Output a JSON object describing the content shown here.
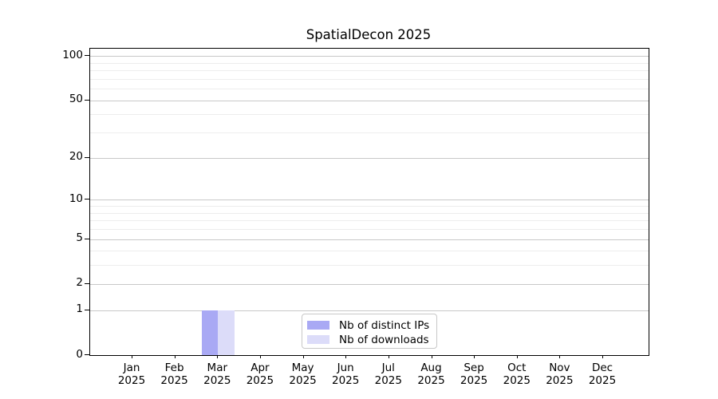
{
  "chart_data": {
    "type": "bar",
    "title": "SpatialDecon 2025",
    "categories": [
      "Jan 2025",
      "Feb 2025",
      "Mar 2025",
      "Apr 2025",
      "May 2025",
      "Jun 2025",
      "Jul 2025",
      "Aug 2025",
      "Sep 2025",
      "Oct 2025",
      "Nov 2025",
      "Dec 2025"
    ],
    "series": [
      {
        "name": "Nb of distinct IPs",
        "color": "#a9a9f4",
        "values": [
          0,
          0,
          1,
          0,
          0,
          0,
          0,
          0,
          0,
          0,
          0,
          0
        ]
      },
      {
        "name": "Nb of downloads",
        "color": "#dcdcf9",
        "values": [
          0,
          0,
          1,
          0,
          0,
          0,
          0,
          0,
          0,
          0,
          0,
          0
        ]
      }
    ],
    "xlabel": "",
    "ylabel": "",
    "y_scale": "log1p",
    "y_ticks": [
      0,
      1,
      2,
      5,
      10,
      20,
      50,
      100
    ],
    "y_minor_ticks": [
      3,
      4,
      6,
      7,
      8,
      9,
      30,
      40,
      60,
      70,
      80,
      90
    ],
    "ylim": [
      0,
      113
    ],
    "grid": "horizontal",
    "legend_position": "lower center",
    "colors": {
      "axis": "#000000",
      "grid_major": "#c8c8c8",
      "grid_minor": "#ededed",
      "background": "#ffffff",
      "text": "#000000"
    }
  }
}
